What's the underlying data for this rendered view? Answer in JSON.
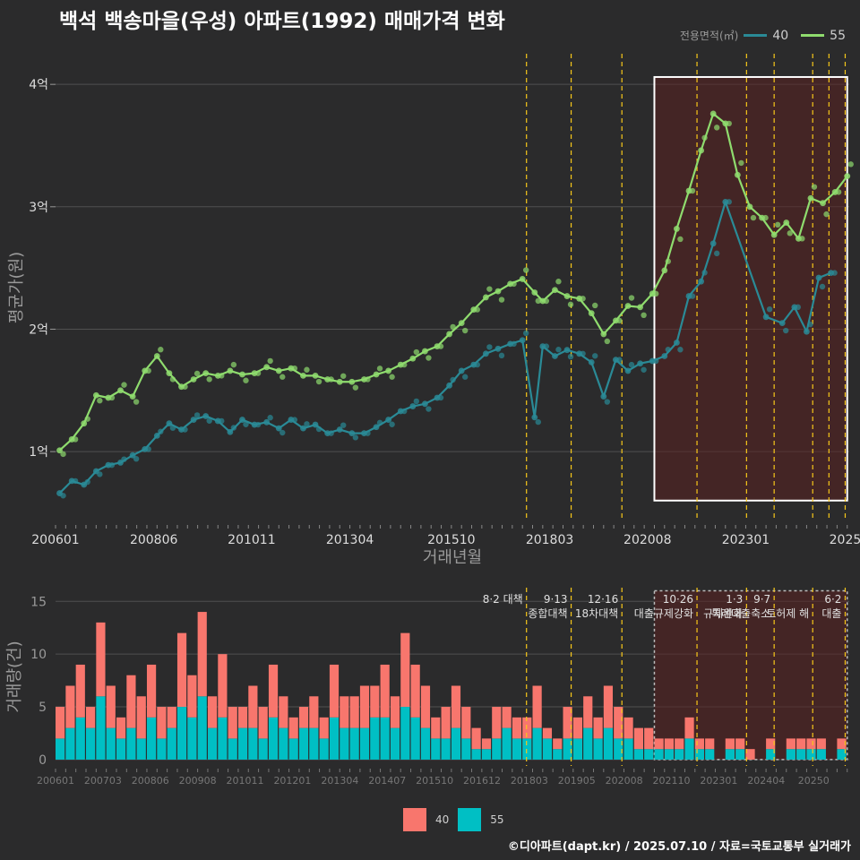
{
  "title": "백석 백송마을(우성) 아파트(1992) 매매가격 변화",
  "credit": "©디아파트(dapt.kr) / 2025.07.10 / 자료=국토교통부 실거래가",
  "legend_top": {
    "title": "전용면적(㎡)",
    "items": [
      {
        "label": "40",
        "color": "#2a8a96"
      },
      {
        "label": "55",
        "color": "#8fdc6e"
      }
    ]
  },
  "legend_bottom": {
    "items": [
      {
        "label": "40",
        "color": "#f8766d"
      },
      {
        "label": "55",
        "color": "#00bfc4"
      }
    ]
  },
  "colors": {
    "accent": "#f8c81a",
    "highlight_fill": "#5a2020",
    "grid": "#505050"
  },
  "chart_data": [
    {
      "type": "line",
      "xlabel": "거래년월",
      "ylabel": "평균가(원)",
      "x_tick_labels": [
        "200601",
        "200806",
        "201011",
        "201304",
        "201510",
        "201803",
        "202008",
        "202301",
        "2025"
      ],
      "y_tick_labels": [
        "1억",
        "2억",
        "3억",
        "4억"
      ],
      "y_ticks": [
        10000,
        20000,
        30000,
        40000
      ],
      "xlim": [
        2006.0,
        2025.55
      ],
      "ylim": [
        4300,
        42500
      ],
      "grid": true,
      "highlight_box": {
        "x_start": 2020.75,
        "x_end": 2025.5,
        "y_min": 6000,
        "y_max": 40600
      },
      "vlines": [
        2017.6,
        2018.7,
        2019.95,
        2021.8,
        2023.02,
        2023.7,
        2024.65,
        2025.05,
        2025.45
      ],
      "series": [
        {
          "name": "40",
          "values": [
            [
              2006.1,
              6600
            ],
            [
              2006.4,
              7600
            ],
            [
              2006.7,
              7300
            ],
            [
              2007.0,
              8400
            ],
            [
              2007.3,
              8900
            ],
            [
              2007.6,
              9100
            ],
            [
              2007.9,
              9700
            ],
            [
              2008.2,
              10200
            ],
            [
              2008.5,
              11300
            ],
            [
              2008.8,
              12300
            ],
            [
              2009.1,
              11800
            ],
            [
              2009.4,
              12600
            ],
            [
              2009.7,
              12900
            ],
            [
              2010.0,
              12500
            ],
            [
              2010.3,
              11600
            ],
            [
              2010.6,
              12600
            ],
            [
              2010.9,
              12200
            ],
            [
              2011.2,
              12400
            ],
            [
              2011.5,
              11900
            ],
            [
              2011.8,
              12600
            ],
            [
              2012.1,
              11900
            ],
            [
              2012.4,
              12200
            ],
            [
              2012.7,
              11500
            ],
            [
              2013.0,
              11800
            ],
            [
              2013.3,
              11500
            ],
            [
              2013.6,
              11500
            ],
            [
              2013.9,
              12000
            ],
            [
              2014.2,
              12600
            ],
            [
              2014.5,
              13300
            ],
            [
              2014.8,
              13700
            ],
            [
              2015.1,
              13900
            ],
            [
              2015.4,
              14400
            ],
            [
              2015.7,
              15400
            ],
            [
              2016.0,
              16600
            ],
            [
              2016.3,
              17100
            ],
            [
              2016.6,
              18000
            ],
            [
              2016.9,
              18400
            ],
            [
              2017.2,
              18800
            ],
            [
              2017.5,
              19100
            ],
            [
              2017.8,
              12800
            ],
            [
              2018.0,
              18600
            ],
            [
              2018.3,
              17800
            ],
            [
              2018.6,
              18300
            ],
            [
              2018.9,
              18000
            ],
            [
              2019.2,
              17300
            ],
            [
              2019.5,
              14500
            ],
            [
              2019.8,
              17500
            ],
            [
              2020.1,
              16600
            ],
            [
              2020.4,
              17200
            ],
            [
              2020.7,
              17400
            ],
            [
              2021.0,
              17800
            ],
            [
              2021.3,
              18900
            ],
            [
              2021.6,
              22700
            ],
            [
              2021.9,
              23900
            ],
            [
              2022.2,
              27000
            ],
            [
              2022.5,
              30400
            ],
            [
              2023.5,
              21000
            ],
            [
              2023.9,
              20500
            ],
            [
              2024.2,
              21800
            ],
            [
              2024.5,
              19800
            ],
            [
              2024.8,
              24200
            ],
            [
              2025.1,
              24600
            ]
          ]
        },
        {
          "name": "55",
          "values": [
            [
              2006.1,
              10100
            ],
            [
              2006.4,
              11000
            ],
            [
              2006.7,
              12300
            ],
            [
              2007.0,
              14600
            ],
            [
              2007.3,
              14400
            ],
            [
              2007.6,
              15000
            ],
            [
              2007.9,
              14500
            ],
            [
              2008.2,
              16600
            ],
            [
              2008.5,
              17800
            ],
            [
              2008.8,
              16400
            ],
            [
              2009.1,
              15300
            ],
            [
              2009.4,
              15900
            ],
            [
              2009.7,
              16400
            ],
            [
              2010.0,
              16200
            ],
            [
              2010.3,
              16600
            ],
            [
              2010.6,
              16300
            ],
            [
              2010.9,
              16400
            ],
            [
              2011.2,
              16900
            ],
            [
              2011.5,
              16600
            ],
            [
              2011.8,
              16800
            ],
            [
              2012.1,
              16200
            ],
            [
              2012.4,
              16200
            ],
            [
              2012.7,
              15900
            ],
            [
              2013.0,
              15700
            ],
            [
              2013.3,
              15700
            ],
            [
              2013.6,
              15900
            ],
            [
              2013.9,
              16300
            ],
            [
              2014.2,
              16600
            ],
            [
              2014.5,
              17100
            ],
            [
              2014.8,
              17600
            ],
            [
              2015.1,
              18200
            ],
            [
              2015.4,
              18600
            ],
            [
              2015.7,
              19600
            ],
            [
              2016.0,
              20500
            ],
            [
              2016.3,
              21600
            ],
            [
              2016.6,
              22600
            ],
            [
              2016.9,
              23100
            ],
            [
              2017.2,
              23700
            ],
            [
              2017.5,
              24100
            ],
            [
              2017.8,
              23000
            ],
            [
              2018.0,
              22300
            ],
            [
              2018.3,
              23200
            ],
            [
              2018.6,
              22700
            ],
            [
              2018.9,
              22500
            ],
            [
              2019.2,
              21300
            ],
            [
              2019.5,
              19600
            ],
            [
              2019.8,
              20700
            ],
            [
              2020.1,
              21900
            ],
            [
              2020.4,
              21800
            ],
            [
              2020.7,
              22900
            ],
            [
              2021.0,
              24800
            ],
            [
              2021.3,
              28200
            ],
            [
              2021.6,
              31300
            ],
            [
              2021.9,
              34600
            ],
            [
              2022.2,
              37600
            ],
            [
              2022.5,
              36800
            ],
            [
              2022.8,
              32600
            ],
            [
              2023.1,
              30000
            ],
            [
              2023.4,
              29100
            ],
            [
              2023.7,
              27700
            ],
            [
              2024.0,
              28700
            ],
            [
              2024.3,
              27400
            ],
            [
              2024.6,
              30700
            ],
            [
              2024.9,
              30300
            ],
            [
              2025.2,
              31200
            ],
            [
              2025.5,
              32500
            ]
          ]
        }
      ]
    },
    {
      "type": "bar",
      "ylabel": "거래량(건)",
      "x_tick_labels": [
        "200601",
        "200703",
        "200806",
        "200908",
        "201011",
        "201201",
        "201304",
        "201407",
        "201510",
        "201612",
        "201803",
        "201905",
        "202008",
        "202110",
        "202301",
        "202404",
        "20250"
      ],
      "y_tick_labels": [
        "0",
        "5",
        "10",
        "15"
      ],
      "y_ticks": [
        0,
        5,
        10,
        15
      ],
      "ylim": [
        -0.6,
        16.3
      ],
      "stacked": true,
      "highlight_box": {
        "x_start": 2020.75,
        "x_end": 2025.5,
        "y_min": 0,
        "y_max": 16
      },
      "events": [
        {
          "x": 2017.6,
          "lines": [
            "8·2 대책"
          ]
        },
        {
          "x": 2018.7,
          "lines": [
            "9·13",
            "종합대책"
          ]
        },
        {
          "x": 2019.95,
          "lines": [
            "12·16",
            "18차대책"
          ]
        },
        {
          "x": 2021.8,
          "lines": [
            "10·26",
            "대출규제강화"
          ]
        },
        {
          "x": 2023.02,
          "lines": [
            "1·3",
            "규제완화"
          ]
        },
        {
          "x": 2023.7,
          "lines": [
            "9·7",
            "특례대출축소"
          ]
        },
        {
          "x": 2024.65,
          "lines": [
            "",
            "토허제 해"
          ]
        },
        {
          "x": 2025.45,
          "lines": [
            "6·2",
            "대출"
          ]
        }
      ],
      "x_start": 2006.0,
      "x_step": 0.25,
      "series": [
        {
          "name": "40",
          "values": [
            3,
            4,
            5,
            2,
            7,
            4,
            2,
            5,
            4,
            5,
            3,
            2,
            7,
            4,
            8,
            3,
            6,
            3,
            2,
            4,
            3,
            5,
            3,
            2,
            2,
            3,
            2,
            5,
            3,
            3,
            4,
            3,
            5,
            3,
            7,
            5,
            4,
            2,
            3,
            4,
            3,
            2,
            1,
            3,
            2,
            2,
            2,
            4,
            1,
            1,
            3,
            2,
            3,
            2,
            4,
            3,
            2,
            2,
            2,
            1,
            1,
            1,
            2,
            1,
            1,
            0,
            1,
            1,
            1,
            0,
            1,
            0,
            1,
            1,
            1,
            1,
            0,
            1
          ]
        },
        {
          "name": "55",
          "values": [
            2,
            3,
            4,
            3,
            6,
            3,
            2,
            3,
            2,
            4,
            2,
            3,
            5,
            4,
            6,
            3,
            4,
            2,
            3,
            3,
            2,
            4,
            3,
            2,
            3,
            3,
            2,
            4,
            3,
            3,
            3,
            4,
            4,
            3,
            5,
            4,
            3,
            2,
            2,
            3,
            2,
            1,
            1,
            2,
            3,
            2,
            2,
            3,
            2,
            1,
            2,
            2,
            3,
            2,
            3,
            2,
            2,
            1,
            1,
            1,
            1,
            1,
            2,
            1,
            1,
            0,
            1,
            1,
            0,
            0,
            1,
            0,
            1,
            1,
            1,
            1,
            0,
            1
          ]
        }
      ]
    }
  ]
}
